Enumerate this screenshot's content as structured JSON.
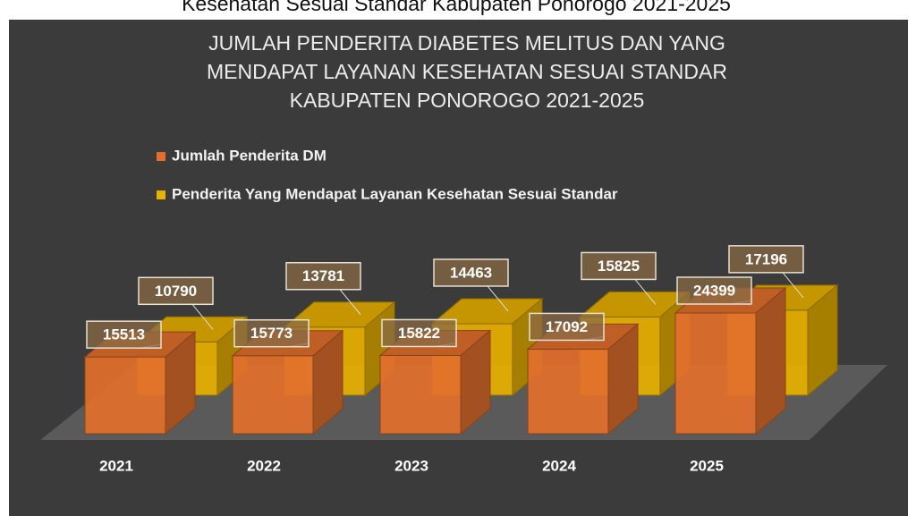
{
  "caption": "Kesehatan Sesuai Standar Kabupaten Ponorogo 2021-2025",
  "chart_data": {
    "type": "bar3d",
    "title": [
      "JUMLAH PENDERITA DIABETES MELITUS DAN YANG",
      "MENDAPAT LAYANAN KESEHATAN SESUAI STANDAR",
      "KABUPATEN PONOROGO 2021-2025"
    ],
    "categories": [
      "2021",
      "2022",
      "2023",
      "2024",
      "2025"
    ],
    "ylim": [
      0,
      30000
    ],
    "series": [
      {
        "name": "Jumlah Penderita DM",
        "color": "#e2702c",
        "values": [
          15513,
          15773,
          15822,
          17092,
          24399
        ]
      },
      {
        "name": "Penderita Yang Mendapat Layanan Kesehatan Sesuai Standar",
        "color": "#e8b000",
        "values": [
          10790,
          13781,
          14463,
          15825,
          17196
        ]
      }
    ]
  }
}
